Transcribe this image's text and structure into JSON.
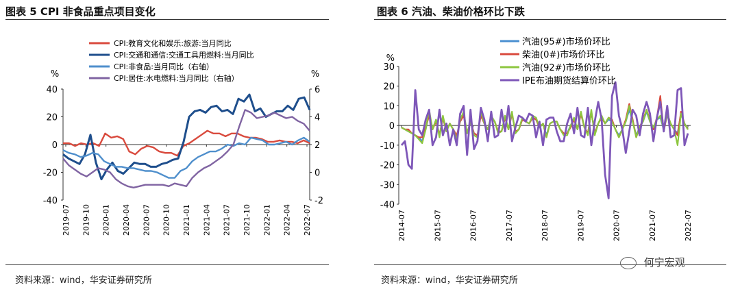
{
  "left": {
    "title": "图表 5 CPI 非食品重点项目变化",
    "source": "资料来源：wind，华安证券研究所"
  },
  "right": {
    "title": "图表 6  汽油、柴油价格环比下跌",
    "source": "资料来源：wind，华安证券研究所"
  },
  "watermark": "何宁宏观",
  "chart_data": [
    {
      "type": "line",
      "title": "图表 5 CPI 非食品重点项目变化",
      "left_axis": {
        "unit": "%",
        "ylim": [
          -40,
          40
        ],
        "ticks": [
          -40,
          -20,
          0,
          20,
          40
        ]
      },
      "right_axis": {
        "unit": "%",
        "ylim": [
          -2,
          6
        ],
        "ticks": [
          -2,
          0,
          2,
          4,
          6
        ]
      },
      "x_labels": [
        "2019-07",
        "2019-10",
        "2020-01",
        "2020-04",
        "2020-07",
        "2020-10",
        "2021-01",
        "2021-04",
        "2021-07",
        "2021-10",
        "2022-01",
        "2022-04",
        "2022-07"
      ],
      "legend": "top-left inside",
      "series": [
        {
          "name": "CPI:教育文化和娱乐:旅游:当月同比",
          "color": "#d94a3d",
          "axis": "left",
          "values": [
            1,
            1,
            -1,
            1,
            0,
            1,
            -1,
            8,
            5,
            6,
            4,
            -5,
            -7,
            -3,
            -1,
            -2,
            -5,
            -6,
            -6,
            -8,
            -1,
            1,
            4,
            7,
            10,
            8,
            8,
            6,
            8,
            8,
            6,
            5,
            5,
            4,
            2,
            2,
            3,
            2,
            2,
            1,
            3,
            1
          ]
        },
        {
          "name": "CPI:交通和通信:交通工具用燃料:当月同比",
          "color": "#1e4e8c",
          "axis": "left",
          "values": [
            -7,
            -10,
            -12,
            -14,
            -7,
            7,
            -13,
            -25,
            -18,
            -13,
            -19,
            -21,
            -17,
            -13,
            -14,
            -14,
            -16,
            -16,
            -14,
            -13,
            -11,
            -10,
            2,
            20,
            24,
            25,
            23,
            27,
            28,
            24,
            25,
            22,
            33,
            31,
            36,
            24,
            26,
            20,
            22,
            24,
            24,
            28,
            25,
            33,
            34,
            25
          ]
        },
        {
          "name": "CPI:非食品:当月同比（右轴）",
          "color": "#4f8fcc",
          "axis": "right",
          "values": [
            1.6,
            1.4,
            1.3,
            1.1,
            1.2,
            1.4,
            1.3,
            0.8,
            0.6,
            0.4,
            0.4,
            0.3,
            0.3,
            0.2,
            0.1,
            0.1,
            0.0,
            -0.2,
            -0.4,
            -0.4,
            0.1,
            0.3,
            0.8,
            1.1,
            1.3,
            1.5,
            1.5,
            1.7,
            2.0,
            1.9,
            2.1,
            2.0,
            2.5,
            2.4,
            2.3,
            2.0,
            2.0,
            2.1,
            2.2,
            2.0,
            2.3,
            2.5,
            2.2
          ]
        },
        {
          "name": "CPI:居住:水电燃料:当月同比（右轴）",
          "color": "#8064a2",
          "axis": "right",
          "values": [
            1.0,
            0.5,
            0.2,
            -0.1,
            -0.3,
            0.0,
            0.3,
            0.2,
            0.0,
            -0.5,
            -0.8,
            -1.0,
            -1.1,
            -1.0,
            -0.9,
            -0.9,
            -0.9,
            -0.9,
            -1.0,
            -0.8,
            -0.9,
            -1.0,
            -0.4,
            0.0,
            0.3,
            0.5,
            0.8,
            1.1,
            1.5,
            2.0,
            3.3,
            4.5,
            4.3,
            3.9,
            4.0,
            4.1,
            4.3,
            4.1,
            3.9,
            4.0,
            3.7,
            3.5,
            3.0
          ]
        }
      ]
    },
    {
      "type": "line",
      "title": "图表 6  汽油、柴油价格环比下跌",
      "axis": {
        "unit": "%",
        "ylim": [
          -40,
          30
        ],
        "ticks": [
          -40,
          -30,
          -20,
          -10,
          0,
          10,
          20,
          30
        ]
      },
      "x_labels": [
        "2014-07",
        "2015-07",
        "2016-07",
        "2017-07",
        "2018-07",
        "2019-07",
        "2020-07",
        "2021-07",
        "2022-07"
      ],
      "legend": "top-center inside",
      "series": [
        {
          "name": "汽油(95#)市场价环比",
          "color": "#4a8fd0",
          "values": [
            -1,
            -2,
            -3,
            -4,
            -5,
            -6,
            -8,
            -2,
            6,
            -2,
            3,
            -5,
            4,
            -3,
            1,
            -2,
            -6,
            3,
            6,
            -4,
            2,
            -4,
            -5,
            6,
            1,
            -2,
            4,
            2,
            -3,
            -3,
            4,
            -2,
            6,
            -3,
            -2,
            3,
            2,
            1,
            4,
            3,
            -1,
            1,
            -5,
            1,
            2,
            2,
            -2,
            -4,
            -4,
            0,
            3,
            -2,
            6,
            -1,
            -4,
            7,
            -4,
            1,
            4,
            1,
            3,
            2,
            -2,
            -5,
            -2,
            2,
            8,
            2,
            -5,
            -1,
            2,
            7,
            2,
            -1,
            3,
            4,
            -2,
            5,
            1,
            -2,
            -4,
            6,
            1,
            -2
          ]
        },
        {
          "name": "柴油(0#)市场价环比",
          "color": "#d94a3d",
          "values": [
            -1,
            -2,
            -2,
            -4,
            -5,
            -6,
            -6,
            -1,
            5,
            -2,
            2,
            -5,
            4,
            -3,
            1,
            -2,
            -5,
            2,
            5,
            -4,
            2,
            -4,
            -5,
            5,
            1,
            -2,
            4,
            2,
            -3,
            -3,
            4,
            -2,
            6,
            -3,
            -2,
            3,
            2,
            1,
            4,
            3,
            -1,
            1,
            -6,
            1,
            2,
            2,
            -2,
            -4,
            -4,
            -1,
            3,
            -2,
            6,
            -1,
            -4,
            7,
            -4,
            1,
            4,
            1,
            4,
            3,
            -2,
            -6,
            -2,
            3,
            11,
            3,
            -6,
            -1,
            3,
            8,
            3,
            -2,
            4,
            15,
            -3,
            6,
            1,
            -2,
            -5,
            7,
            1,
            -2
          ]
        },
        {
          "name": "汽油(92#)市场价环比",
          "color": "#8dc63f",
          "values": [
            -1,
            -2,
            -3,
            -4,
            -5,
            -7,
            -9,
            -2,
            8,
            -2,
            3,
            -6,
            5,
            -3,
            1,
            -2,
            -7,
            3,
            7,
            -4,
            2,
            -5,
            -6,
            7,
            1,
            -2,
            5,
            2,
            -4,
            -3,
            5,
            -2,
            7,
            -4,
            -2,
            4,
            2,
            1,
            5,
            4,
            -1,
            1,
            -6,
            1,
            2,
            2,
            -2,
            -5,
            -5,
            0,
            4,
            -2,
            7,
            -1,
            -5,
            8,
            -5,
            1,
            5,
            1,
            4,
            2,
            -2,
            -6,
            -2,
            2,
            10,
            2,
            -6,
            -1,
            2,
            8,
            2,
            -1,
            3,
            5,
            -2,
            6,
            1,
            -2,
            -10,
            6,
            1,
            -2
          ]
        },
        {
          "name": "IPE布油期货结算价环比",
          "color": "#7e57b8",
          "values": [
            -10,
            -8,
            -20,
            -22,
            18,
            -2,
            -5,
            3,
            8,
            -10,
            -6,
            8,
            -5,
            1,
            -10,
            -2,
            -10,
            6,
            10,
            -15,
            8,
            -12,
            -8,
            9,
            3,
            -8,
            7,
            -6,
            -5,
            8,
            -3,
            10,
            -8,
            -1,
            5,
            4,
            2,
            6,
            5,
            -6,
            2,
            -10,
            3,
            4,
            4,
            -3,
            -8,
            -8,
            1,
            6,
            -4,
            9,
            -5,
            -6,
            9,
            -10,
            2,
            12,
            3,
            -25,
            -37,
            15,
            22,
            5,
            -2,
            -14,
            -3,
            8,
            5,
            -5,
            6,
            12,
            6,
            -8,
            4,
            12,
            -3,
            10,
            -6,
            -5,
            18,
            19,
            -10,
            -4
          ]
        }
      ]
    }
  ]
}
